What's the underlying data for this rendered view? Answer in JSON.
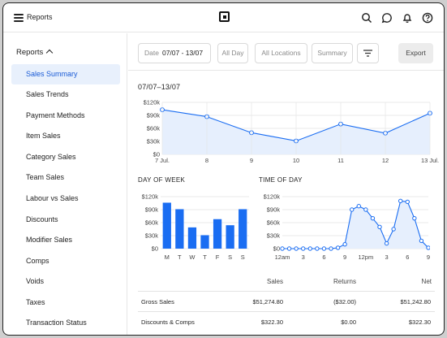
{
  "topbar": {
    "title": "Reports",
    "icons": [
      "menu-icon",
      "square-logo-icon",
      "search-icon",
      "chat-icon",
      "bell-icon",
      "help-icon"
    ]
  },
  "sidebar": {
    "header": "Reports",
    "items": [
      {
        "label": "Sales Summary",
        "active": true
      },
      {
        "label": "Sales Trends"
      },
      {
        "label": "Payment Methods"
      },
      {
        "label": "Item Sales"
      },
      {
        "label": "Category Sales"
      },
      {
        "label": "Team Sales"
      },
      {
        "label": "Labour vs Sales"
      },
      {
        "label": "Discounts"
      },
      {
        "label": "Modifier Sales"
      },
      {
        "label": "Comps"
      },
      {
        "label": "Voids"
      },
      {
        "label": "Taxes"
      },
      {
        "label": "Transaction Status"
      }
    ]
  },
  "filters": {
    "date_label": "Date",
    "date_value": "07/07 - 13/07",
    "allday": "All Day",
    "locations": "All Locations",
    "summary": "Summary",
    "export": "Export"
  },
  "range_title": "07/07–13/07",
  "sections": {
    "day_of_week": "DAY OF WEEK",
    "time_of_day": "TIME OF DAY"
  },
  "table": {
    "headers": [
      "Sales",
      "Returns",
      "Net"
    ],
    "rows": [
      {
        "label": "Gross Sales",
        "sales": "$51,274.80",
        "returns": "($32.00)",
        "net": "$51,242.80"
      },
      {
        "label": "Discounts & Comps",
        "sales": "$322.30",
        "returns": "$0.00",
        "net": "$322.30"
      }
    ]
  },
  "colors": {
    "accent": "#1a6df2",
    "fill": "#e6effd",
    "grid": "#e3e3e3"
  },
  "chart_data": [
    {
      "type": "area",
      "categories": [
        "7 Jul.",
        "8",
        "9",
        "10",
        "11",
        "12",
        "13 Jul."
      ],
      "values": [
        103000,
        87000,
        50000,
        31000,
        70000,
        49000,
        95000
      ],
      "yticks": [
        "$0",
        "$30k",
        "$60k",
        "$90k",
        "$120k"
      ],
      "ylim": [
        0,
        120000
      ]
    },
    {
      "type": "bar",
      "categories": [
        "M",
        "T",
        "W",
        "T",
        "F",
        "S",
        "S"
      ],
      "values": [
        106000,
        91000,
        49000,
        31000,
        68000,
        54000,
        91000
      ],
      "yticks": [
        "$0",
        "$30k",
        "$60k",
        "$90k",
        "$120k"
      ],
      "ylim": [
        0,
        120000
      ]
    },
    {
      "type": "area",
      "xticks": [
        "12am",
        "3",
        "6",
        "9",
        "12pm",
        "3",
        "6",
        "9"
      ],
      "values": [
        0,
        0,
        0,
        0,
        0,
        0,
        0,
        0,
        2000,
        10000,
        90000,
        98000,
        90000,
        70000,
        50000,
        12000,
        45000,
        110000,
        108000,
        70000,
        18000,
        2000
      ],
      "yticks": [
        "$0",
        "$30k",
        "$60k",
        "$90k",
        "$120k"
      ],
      "ylim": [
        0,
        120000
      ]
    }
  ]
}
